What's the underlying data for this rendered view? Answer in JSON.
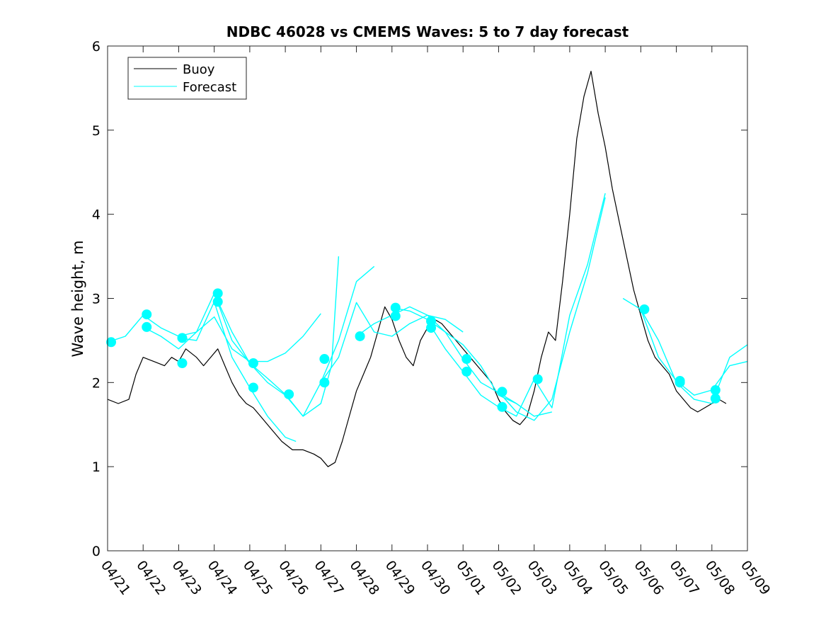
{
  "chart_data": {
    "type": "line",
    "title": "NDBC 46028 vs CMEMS Waves: 5 to 7 day forecast",
    "xlabel": "",
    "ylabel": "Wave height, m",
    "x_is_date": true,
    "xlim": [
      0,
      18
    ],
    "ylim": [
      0,
      6
    ],
    "x_ticks": [
      0,
      1,
      2,
      3,
      4,
      5,
      6,
      7,
      8,
      9,
      10,
      11,
      12,
      13,
      14,
      15,
      16,
      17,
      18
    ],
    "x_tick_labels": [
      "04/21",
      "04/22",
      "04/23",
      "04/24",
      "04/25",
      "04/26",
      "04/27",
      "04/28",
      "04/29",
      "04/30",
      "05/01",
      "05/02",
      "05/03",
      "05/04",
      "05/05",
      "05/06",
      "05/07",
      "05/08",
      "05/09"
    ],
    "y_ticks": [
      0,
      1,
      2,
      3,
      4,
      5,
      6
    ],
    "y_tick_labels": [
      "0",
      "1",
      "2",
      "3",
      "4",
      "5",
      "6"
    ],
    "grid": false,
    "legend_position": "top-left",
    "legend": [
      {
        "name": "Buoy",
        "color": "#000000"
      },
      {
        "name": "Forecast",
        "color": "#00ffff"
      }
    ],
    "series": [
      {
        "name": "Buoy",
        "color": "#000000",
        "x": [
          0,
          0.3,
          0.6,
          0.8,
          1.0,
          1.3,
          1.6,
          1.8,
          2.0,
          2.2,
          2.5,
          2.7,
          2.9,
          3.1,
          3.3,
          3.5,
          3.7,
          3.9,
          4.1,
          4.3,
          4.6,
          4.9,
          5.2,
          5.5,
          5.8,
          6.0,
          6.2,
          6.4,
          6.6,
          6.8,
          7.0,
          7.2,
          7.4,
          7.6,
          7.8,
          8.0,
          8.2,
          8.4,
          8.6,
          8.8,
          9.0,
          9.2,
          9.4,
          9.6,
          9.8,
          10.0,
          10.2,
          10.4,
          10.6,
          10.8,
          11.0,
          11.2,
          11.4,
          11.6,
          11.8,
          12.0,
          12.2,
          12.4,
          12.6,
          12.8,
          13.0,
          13.2,
          13.4,
          13.6,
          13.8,
          14.0,
          14.2,
          14.4,
          14.6,
          14.8,
          15.0,
          15.2,
          15.4,
          15.6,
          15.8,
          16.0,
          16.2,
          16.4,
          16.6,
          16.8,
          17.0,
          17.2,
          17.4
        ],
        "y": [
          1.8,
          1.75,
          1.8,
          2.1,
          2.3,
          2.25,
          2.2,
          2.3,
          2.25,
          2.4,
          2.3,
          2.2,
          2.3,
          2.4,
          2.2,
          2.0,
          1.85,
          1.75,
          1.7,
          1.6,
          1.45,
          1.3,
          1.2,
          1.2,
          1.15,
          1.1,
          1.0,
          1.05,
          1.3,
          1.6,
          1.9,
          2.1,
          2.3,
          2.6,
          2.9,
          2.75,
          2.5,
          2.3,
          2.2,
          2.5,
          2.65,
          2.75,
          2.7,
          2.6,
          2.5,
          2.4,
          2.3,
          2.2,
          2.1,
          2.0,
          1.8,
          1.65,
          1.55,
          1.5,
          1.6,
          1.9,
          2.3,
          2.6,
          2.5,
          3.2,
          4.0,
          4.9,
          5.4,
          5.7,
          5.2,
          4.8,
          4.3,
          3.9,
          3.5,
          3.1,
          2.8,
          2.5,
          2.3,
          2.2,
          2.1,
          1.9,
          1.8,
          1.7,
          1.65,
          1.7,
          1.75,
          1.8,
          1.75
        ]
      },
      {
        "name": "Forecast",
        "color": "#00ffff",
        "x": [
          0,
          0.5,
          1.0,
          1.5,
          2.0,
          2.5,
          3.0,
          3.5,
          4.0,
          4.5,
          5.0,
          5.5,
          6.0
        ],
        "y": [
          2.48,
          2.55,
          2.8,
          2.65,
          2.55,
          2.6,
          2.78,
          2.4,
          2.25,
          2.25,
          2.35,
          2.55,
          2.82
        ]
      },
      {
        "name": "Forecast",
        "color": "#00ffff",
        "x": [
          1.0,
          1.5,
          2.0,
          2.5,
          3.0,
          3.5,
          4.0,
          4.5,
          5.0,
          5.5,
          6.0,
          6.3,
          6.5
        ],
        "y": [
          2.66,
          2.55,
          2.4,
          2.6,
          3.06,
          2.5,
          2.23,
          2.0,
          1.85,
          1.6,
          1.75,
          2.2,
          3.5
        ]
      },
      {
        "name": "Forecast",
        "color": "#00ffff",
        "x": [
          2.0,
          2.5,
          3.0,
          3.5,
          4.0,
          4.5,
          5.0,
          5.3
        ],
        "y": [
          2.53,
          2.5,
          2.96,
          2.3,
          1.94,
          1.6,
          1.35,
          1.3
        ]
      },
      {
        "name": "Forecast",
        "color": "#00ffff",
        "x": [
          3.0,
          3.5,
          4.0,
          4.5,
          5.0,
          5.5,
          6.0,
          6.5,
          7.0,
          7.5
        ],
        "y": [
          3.06,
          2.6,
          2.23,
          2.05,
          1.86,
          1.6,
          2.0,
          2.5,
          3.2,
          3.38
        ]
      },
      {
        "name": "Forecast",
        "color": "#00ffff",
        "x": [
          6.0,
          6.5,
          7.0,
          7.5,
          8.0,
          8.5,
          9.0,
          9.5,
          10.0
        ],
        "y": [
          2.0,
          2.3,
          2.95,
          2.6,
          2.55,
          2.7,
          2.8,
          2.75,
          2.6
        ]
      },
      {
        "name": "Forecast",
        "color": "#00ffff",
        "x": [
          7.0,
          7.5,
          8.0,
          8.5,
          9.0,
          9.5,
          10.0,
          10.5,
          11.0,
          11.5
        ],
        "y": [
          2.55,
          2.7,
          2.8,
          2.9,
          2.8,
          2.6,
          2.45,
          2.2,
          1.85,
          1.75
        ]
      },
      {
        "name": "Forecast",
        "color": "#00ffff",
        "x": [
          8.0,
          8.5,
          9.0,
          9.5,
          10.0,
          10.5,
          11.0,
          11.5,
          12.0,
          12.5
        ],
        "y": [
          2.89,
          2.85,
          2.75,
          2.6,
          2.28,
          2.0,
          1.88,
          1.75,
          1.6,
          1.65
        ]
      },
      {
        "name": "Forecast",
        "color": "#00ffff",
        "x": [
          9.0,
          9.5,
          10.0,
          10.5,
          11.0,
          11.5,
          12.0,
          12.5,
          13.0,
          13.5,
          14.0
        ],
        "y": [
          2.73,
          2.4,
          2.13,
          1.85,
          1.71,
          1.6,
          2.04,
          1.7,
          2.8,
          3.4,
          4.25
        ]
      },
      {
        "name": "Forecast",
        "color": "#00ffff",
        "x": [
          11.0,
          11.5,
          12.0,
          12.5,
          13.0,
          13.5,
          14.0
        ],
        "y": [
          1.89,
          1.65,
          1.55,
          1.8,
          2.6,
          3.3,
          4.2
        ]
      },
      {
        "name": "Forecast",
        "color": "#00ffff",
        "x": [
          14.5,
          15.0,
          15.5,
          16.0,
          16.5,
          17.0,
          17.5,
          18.0
        ],
        "y": [
          3.0,
          2.87,
          2.5,
          2.0,
          1.8,
          1.75,
          2.3,
          2.45
        ]
      },
      {
        "name": "Forecast",
        "color": "#00ffff",
        "x": [
          15.0,
          15.5,
          16.0,
          16.5,
          17.0,
          17.5,
          18.0
        ],
        "y": [
          2.87,
          2.3,
          2.02,
          1.85,
          1.91,
          2.2,
          2.25
        ]
      }
    ],
    "markers": {
      "color": "#00ffff",
      "x": [
        0.1,
        1.1,
        1.1,
        2.1,
        2.1,
        3.1,
        3.1,
        4.1,
        4.1,
        5.1,
        6.1,
        6.1,
        7.1,
        8.1,
        8.1,
        9.1,
        9.1,
        10.1,
        10.1,
        11.1,
        11.1,
        12.1,
        15.1,
        16.1,
        16.1,
        17.1,
        17.1
      ],
      "y": [
        2.48,
        2.81,
        2.66,
        2.53,
        2.23,
        3.06,
        2.96,
        2.23,
        1.94,
        1.86,
        2.28,
        2.0,
        2.55,
        2.89,
        2.79,
        2.73,
        2.65,
        2.28,
        2.13,
        1.89,
        1.71,
        2.04,
        2.87,
        2.02,
        2.0,
        1.91,
        1.81
      ]
    }
  }
}
